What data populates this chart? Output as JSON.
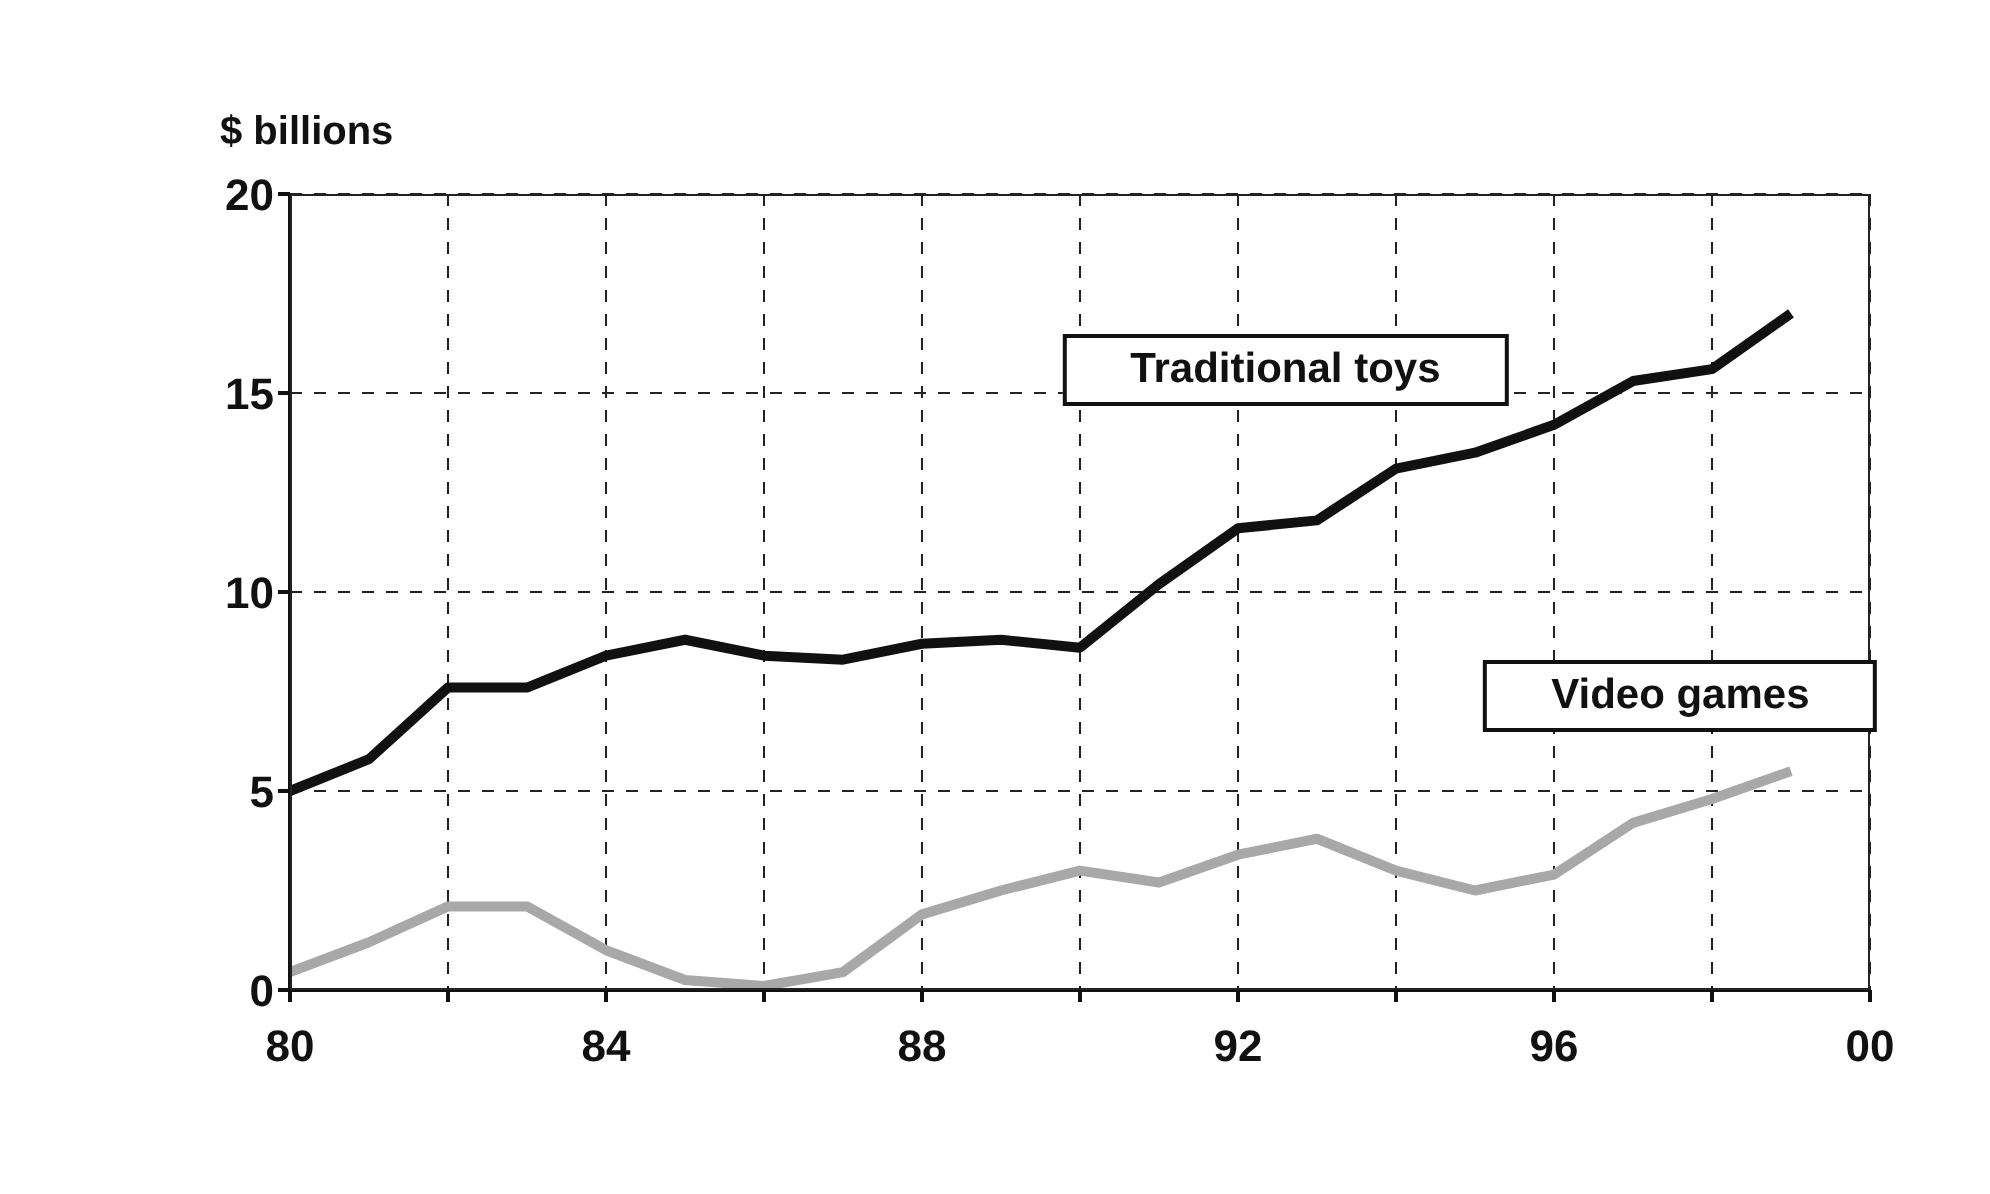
{
  "chart_data": {
    "type": "line",
    "ylabel": "$ billions",
    "x": [
      1980,
      1981,
      1982,
      1983,
      1984,
      1985,
      1986,
      1987,
      1988,
      1989,
      1990,
      1991,
      1992,
      1993,
      1994,
      1995,
      1996,
      1997,
      1998,
      1999
    ],
    "series": [
      {
        "name": "Traditional toys",
        "color": "#111111",
        "values": [
          5.0,
          5.8,
          7.6,
          7.6,
          8.4,
          8.8,
          8.4,
          8.3,
          8.7,
          8.8,
          8.6,
          10.2,
          11.6,
          11.8,
          13.1,
          13.5,
          14.2,
          15.3,
          15.6,
          17.0
        ]
      },
      {
        "name": "Video games",
        "color": "#a8a8a8",
        "values": [
          0.45,
          1.2,
          2.1,
          2.1,
          1.0,
          0.25,
          0.1,
          0.45,
          1.9,
          2.5,
          3.0,
          2.7,
          3.4,
          3.8,
          3.0,
          2.5,
          2.9,
          4.2,
          4.8,
          5.5
        ]
      }
    ],
    "xlim": [
      1980,
      2000
    ],
    "xticks": [
      {
        "value": 1980,
        "label": "80"
      },
      {
        "value": 1982,
        "label": null
      },
      {
        "value": 1984,
        "label": "84"
      },
      {
        "value": 1986,
        "label": null
      },
      {
        "value": 1988,
        "label": "88"
      },
      {
        "value": 1990,
        "label": null
      },
      {
        "value": 1992,
        "label": "92"
      },
      {
        "value": 1994,
        "label": null
      },
      {
        "value": 1996,
        "label": "96"
      },
      {
        "value": 1998,
        "label": null
      },
      {
        "value": 2000,
        "label": "00"
      }
    ],
    "ylim": [
      0,
      20
    ],
    "yticks": [
      0,
      5,
      10,
      15,
      20
    ],
    "grid": true,
    "marker": "none",
    "line_style": "solid"
  }
}
